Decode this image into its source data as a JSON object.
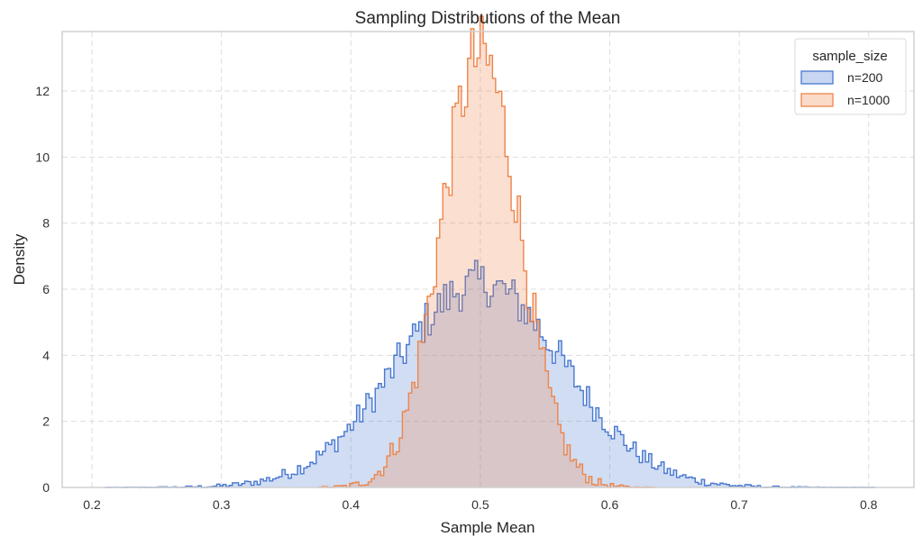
{
  "chart_data": {
    "type": "histogram",
    "title": "Sampling Distributions of the Mean",
    "xlabel": "Sample Mean",
    "ylabel": "Density",
    "xlim": [
      0.177,
      0.835
    ],
    "ylim": [
      0,
      13.8
    ],
    "x_ticks": [
      0.2,
      0.3,
      0.4,
      0.5,
      0.6,
      0.7,
      0.8
    ],
    "x_tick_labels": [
      "0.2",
      "0.3",
      "0.4",
      "0.5",
      "0.6",
      "0.7",
      "0.8"
    ],
    "y_ticks": [
      0,
      2,
      4,
      6,
      8,
      10,
      12
    ],
    "y_tick_labels": [
      "0",
      "2",
      "4",
      "6",
      "8",
      "10",
      "12"
    ],
    "grid": true,
    "grid_style": "dashed",
    "element": "step",
    "stat": "density",
    "legend": {
      "title": "sample_size",
      "placement": "top-right",
      "entries": [
        {
          "label": "n=200",
          "color": "#4878d0"
        },
        {
          "label": "n=1000",
          "color": "#ee854a"
        }
      ]
    },
    "series": [
      {
        "name": "n=200",
        "color": "#4878d0",
        "fill": "#4878d0",
        "fill_opacity": 0.25,
        "mean": 0.5,
        "std": 0.0645,
        "range": [
          0.21,
          0.805
        ],
        "bin_width": 0.0024,
        "peak_density": 6.3
      },
      {
        "name": "n=1000",
        "color": "#ee854a",
        "fill": "#ee854a",
        "fill_opacity": 0.25,
        "mean": 0.5,
        "std": 0.0305,
        "range": [
          0.375,
          0.633
        ],
        "bin_width": 0.0024,
        "peak_density": 13.2
      }
    ]
  }
}
